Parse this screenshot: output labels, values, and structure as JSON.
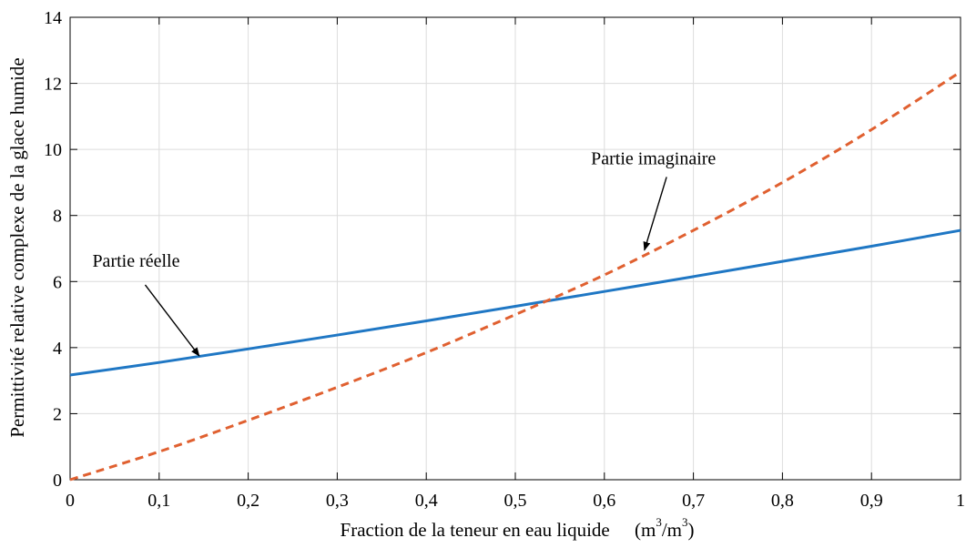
{
  "chart_data": {
    "type": "line",
    "title": "",
    "xlabel": "Fraction de la teneur en eau liquide",
    "xunit": {
      "pre": "(m",
      "sup1": "3",
      "mid": "/m",
      "sup2": "3",
      "post": ")"
    },
    "ylabel": "Permittivité relative complexe de la glace humide",
    "xlim": [
      0,
      1
    ],
    "ylim": [
      0,
      14
    ],
    "xticks": [
      0,
      0.1,
      0.2,
      0.3,
      0.4,
      0.5,
      0.6,
      0.7,
      0.8,
      0.9,
      1
    ],
    "xtick_labels": [
      "0",
      "0,1",
      "0,2",
      "0,3",
      "0,4",
      "0,5",
      "0,6",
      "0,7",
      "0,8",
      "0,9",
      "1"
    ],
    "yticks": [
      0,
      2,
      4,
      6,
      8,
      10,
      12,
      14
    ],
    "ytick_labels": [
      "0",
      "2",
      "4",
      "6",
      "8",
      "10",
      "12",
      "14"
    ],
    "grid": true,
    "series": [
      {
        "color": "#1f77c4",
        "style": "solid",
        "x": [
          0,
          0.1,
          0.2,
          0.3,
          0.4,
          0.5,
          0.6,
          0.7,
          0.8,
          0.9,
          1.0
        ],
        "values": [
          3.17,
          3.55,
          3.96,
          4.38,
          4.81,
          5.25,
          5.7,
          6.15,
          6.61,
          7.07,
          7.55
        ]
      },
      {
        "color": "#e06030",
        "style": "dashed",
        "x": [
          0,
          0.1,
          0.2,
          0.3,
          0.4,
          0.5,
          0.6,
          0.7,
          0.8,
          0.9,
          1.0
        ],
        "values": [
          0.0,
          0.85,
          1.8,
          2.8,
          3.85,
          5.0,
          6.2,
          7.55,
          9.0,
          10.6,
          12.35
        ]
      }
    ],
    "annotations": [
      {
        "text": "Partie réelle",
        "target_x": 0.145,
        "target_y": 3.75,
        "text_x": 0.025,
        "text_y": 6.45
      },
      {
        "text": "Partie imaginaire",
        "target_x": 0.645,
        "target_y": 6.95,
        "text_x": 0.585,
        "text_y": 9.55
      }
    ]
  }
}
